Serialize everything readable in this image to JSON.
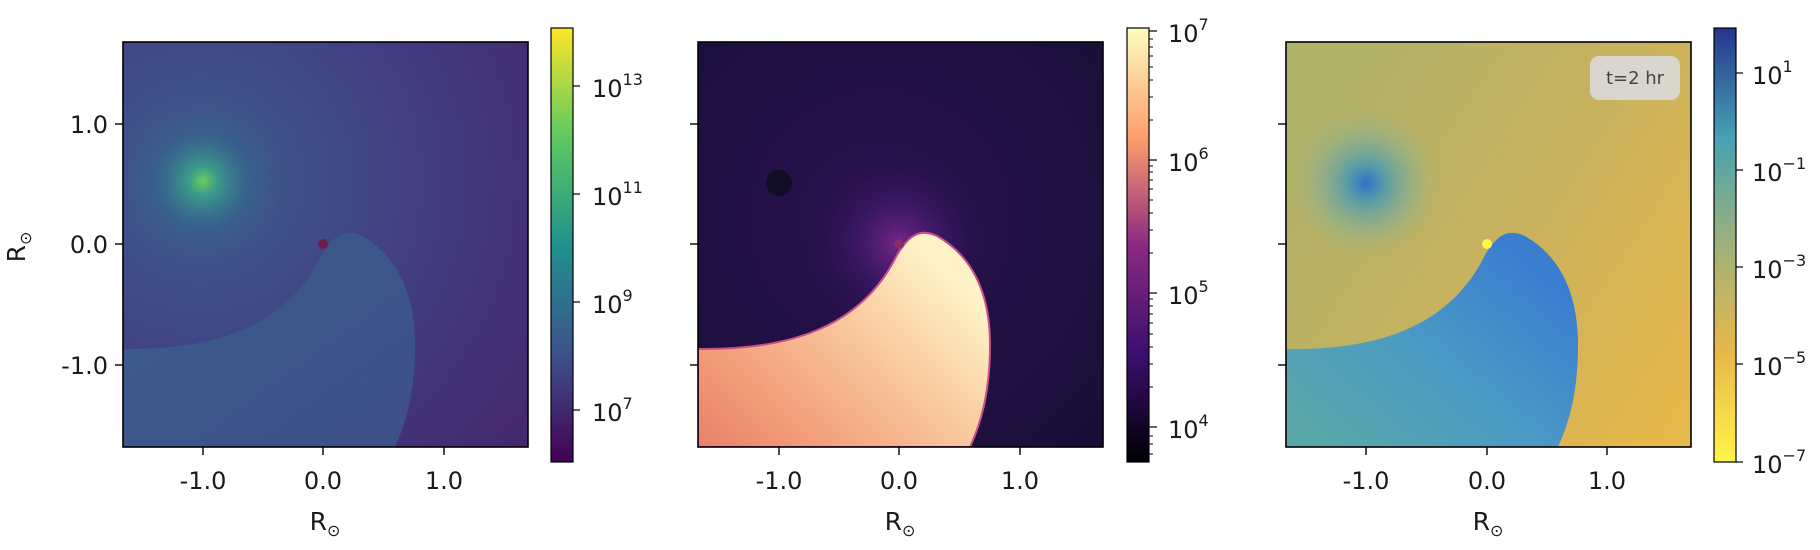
{
  "chart_data": [
    {
      "type": "heatmap",
      "title": "",
      "xlabel": "R",
      "ylabel": "R",
      "label_subscript": "⊙",
      "xlim": [
        -1.7,
        1.7
      ],
      "ylim": [
        -1.7,
        1.7
      ],
      "x_ticks": [
        -1.0,
        0.0,
        1.0
      ],
      "x_tick_labels": [
        "-1.0",
        "0.0",
        "1.0"
      ],
      "y_ticks": [
        -1.0,
        0.0,
        1.0
      ],
      "y_tick_labels": [
        "-1.0",
        "0.0",
        "1.0"
      ],
      "colormap": "viridis",
      "color_scale": "log",
      "colorbar_range": [
        1000000.0,
        100000000000000.0
      ],
      "colorbar_ticks": [
        {
          "value": 10000000.0,
          "base": "10",
          "exp": "7"
        },
        {
          "value": 1000000000.0,
          "base": "10",
          "exp": "9"
        },
        {
          "value": 100000000000.0,
          "base": "10",
          "exp": "11"
        },
        {
          "value": 10000000000000.0,
          "base": "10",
          "exp": "13"
        }
      ],
      "features": {
        "source_point": [
          -1.0,
          0.5
        ],
        "central_point": [
          0.0,
          0.0
        ]
      }
    },
    {
      "type": "heatmap",
      "title": "",
      "xlabel": "R",
      "ylabel": "",
      "label_subscript": "⊙",
      "xlim": [
        -1.7,
        1.7
      ],
      "ylim": [
        -1.7,
        1.7
      ],
      "x_ticks": [
        -1.0,
        0.0,
        1.0
      ],
      "x_tick_labels": [
        "-1.0",
        "0.0",
        "1.0"
      ],
      "y_ticks": [
        -1.0,
        0.0,
        1.0
      ],
      "y_tick_labels": [],
      "colormap": "magma",
      "color_scale": "log",
      "colorbar_range": [
        5000,
        12000000
      ],
      "colorbar_ticks": [
        {
          "value": 10000.0,
          "base": "10",
          "exp": "4"
        },
        {
          "value": 100000.0,
          "base": "10",
          "exp": "5"
        },
        {
          "value": 1000000.0,
          "base": "10",
          "exp": "6"
        },
        {
          "value": 10000000.0,
          "base": "10",
          "exp": "7"
        }
      ],
      "features": {
        "source_point": [
          -1.0,
          0.5
        ],
        "central_point": [
          0.0,
          0.0
        ]
      }
    },
    {
      "type": "heatmap",
      "title": "",
      "xlabel": "R",
      "ylabel": "",
      "label_subscript": "⊙",
      "xlim": [
        -1.7,
        1.7
      ],
      "ylim": [
        -1.7,
        1.7
      ],
      "x_ticks": [
        -1.0,
        0.0,
        1.0
      ],
      "x_tick_labels": [
        "-1.0",
        "0.0",
        "1.0"
      ],
      "y_ticks": [
        -1.0,
        0.0,
        1.0
      ],
      "y_tick_labels": [],
      "colormap": "cividis (reversed)",
      "color_scale": "log",
      "colorbar_range": [
        1e-07,
        100
      ],
      "colorbar_ticks": [
        {
          "value": 1e-07,
          "base": "10",
          "exp": "−7"
        },
        {
          "value": 1e-05,
          "base": "10",
          "exp": "−5"
        },
        {
          "value": 0.001,
          "base": "10",
          "exp": "−3"
        },
        {
          "value": 0.1,
          "base": "10",
          "exp": "−1"
        },
        {
          "value": 10,
          "base": "10",
          "exp": "1"
        }
      ],
      "annotation": "t=2 hr",
      "features": {
        "source_point": [
          -1.0,
          0.5
        ],
        "central_point": [
          0.0,
          0.0
        ]
      }
    }
  ]
}
